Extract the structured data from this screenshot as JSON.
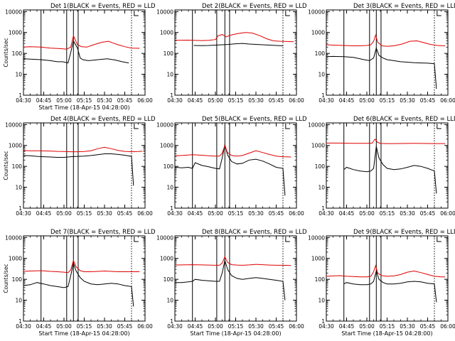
{
  "chart_data": [
    {
      "type": "line",
      "title": "Det 1(BLACK = Events, RED = LLD",
      "xlabel": "Start Time (18-Apr-15 04:28:00)",
      "ylabel": "Counts/sec",
      "x_ticks": [
        "04:30",
        "04:45",
        "05:00",
        "05:15",
        "05:30",
        "05:45",
        "06:00"
      ],
      "y_ticks": [
        "1",
        "10",
        "100",
        "1000",
        "10000"
      ],
      "xlim": [
        0,
        90
      ],
      "ylim": [
        1,
        12000
      ],
      "y_scale": "log",
      "solid_markers": [
        13,
        32,
        37,
        40.5
      ],
      "dotted_markers": [
        80
      ],
      "series": [
        {
          "color": "#000000",
          "x": [
            0,
            13,
            20,
            25,
            29,
            33,
            35,
            37,
            40,
            42,
            44,
            48,
            55,
            62,
            68,
            73,
            78
          ],
          "y": [
            55,
            50,
            45,
            40,
            40,
            35,
            110,
            400,
            180,
            60,
            50,
            45,
            50,
            55,
            48,
            40,
            35
          ]
        },
        {
          "color": "#e00000",
          "x": [
            0,
            5,
            13,
            20,
            27,
            32,
            35,
            37,
            40,
            43,
            47,
            52,
            58,
            63,
            66,
            70,
            75,
            80,
            86
          ],
          "y": [
            200,
            210,
            200,
            180,
            170,
            160,
            200,
            700,
            260,
            210,
            200,
            260,
            340,
            380,
            320,
            260,
            210,
            180,
            175
          ]
        }
      ]
    },
    {
      "type": "line",
      "title": "Det 2(BLACK = Events, RED = LLD",
      "xlabel": "",
      "ylabel": "",
      "x_ticks": [
        "04:30",
        "04:45",
        "05:00",
        "05:15",
        "05:30",
        "05:45",
        "06:00"
      ],
      "y_ticks": [
        "1",
        "10",
        "100",
        "1000",
        "10000"
      ],
      "xlim": [
        0,
        90
      ],
      "ylim": [
        1,
        12000
      ],
      "y_scale": "log",
      "solid_markers": [
        13,
        31,
        37,
        40.5
      ],
      "dotted_markers": [
        80
      ],
      "series": [
        {
          "color": "#000000",
          "x": [
            14,
            20,
            25,
            30,
            35,
            40,
            45,
            50,
            55,
            60,
            65,
            70,
            75,
            80
          ],
          "y": [
            240,
            235,
            240,
            250,
            260,
            270,
            290,
            300,
            280,
            270,
            260,
            250,
            240,
            230
          ]
        },
        {
          "color": "#e00000",
          "x": [
            0,
            10,
            14,
            20,
            25,
            30,
            32,
            35,
            38,
            40,
            43,
            47,
            52,
            57,
            63,
            68,
            73,
            78,
            83,
            88
          ],
          "y": [
            420,
            430,
            420,
            410,
            420,
            460,
            700,
            800,
            620,
            700,
            800,
            900,
            1000,
            950,
            700,
            500,
            400,
            380,
            370,
            360
          ]
        }
      ]
    },
    {
      "type": "line",
      "title": "Det 3(BLACK = Events, RED = LLD",
      "xlabel": "",
      "ylabel": "",
      "x_ticks": [
        "04:30",
        "04:45",
        "05:00",
        "05:15",
        "05:30",
        "05:45",
        "06:00"
      ],
      "y_ticks": [
        "1",
        "10",
        "100",
        "1000",
        "10000"
      ],
      "xlim": [
        0,
        90
      ],
      "ylim": [
        1,
        12000
      ],
      "y_scale": "log",
      "solid_markers": [
        13,
        32,
        37,
        40.5
      ],
      "dotted_markers": [
        80
      ],
      "series": [
        {
          "color": "#000000",
          "x": [
            0,
            5,
            13,
            20,
            25,
            28,
            32,
            35,
            37,
            39,
            42,
            45,
            50,
            55,
            60,
            65,
            70,
            75,
            80,
            81.5
          ],
          "y": [
            70,
            72,
            70,
            65,
            55,
            50,
            45,
            60,
            180,
            80,
            60,
            50,
            45,
            40,
            38,
            36,
            35,
            34,
            32,
            2
          ]
        },
        {
          "color": "#e00000",
          "x": [
            0,
            5,
            13,
            20,
            25,
            30,
            33,
            35,
            36.5,
            38,
            41,
            45,
            50,
            56,
            62,
            67,
            72,
            77,
            82,
            88
          ],
          "y": [
            260,
            250,
            240,
            230,
            230,
            240,
            260,
            380,
            750,
            350,
            230,
            220,
            230,
            280,
            380,
            400,
            330,
            270,
            240,
            230
          ]
        }
      ]
    },
    {
      "type": "line",
      "title": "Det 4(BLACK = Events, RED = LLD",
      "xlabel": "",
      "ylabel": "Counts/sec",
      "x_ticks": [
        "04:30",
        "04:45",
        "05:00",
        "05:15",
        "05:30",
        "05:45",
        "06:00"
      ],
      "y_ticks": [
        "1",
        "10",
        "100",
        "1000",
        "10000"
      ],
      "xlim": [
        0,
        90
      ],
      "ylim": [
        1,
        12000
      ],
      "y_scale": "log",
      "solid_markers": [
        13,
        32,
        37,
        40.5
      ],
      "dotted_markers": [
        80
      ],
      "series": [
        {
          "color": "#000000",
          "x": [
            0,
            5,
            10,
            15,
            20,
            25,
            30,
            35,
            40,
            45,
            50,
            55,
            60,
            65,
            70,
            75,
            80,
            81.5
          ],
          "y": [
            330,
            320,
            300,
            290,
            280,
            270,
            270,
            290,
            300,
            310,
            330,
            360,
            400,
            400,
            370,
            340,
            300,
            12
          ]
        },
        {
          "color": "#e00000",
          "x": [
            0,
            5,
            10,
            15,
            20,
            25,
            30,
            35,
            40,
            45,
            50,
            55,
            60,
            65,
            70,
            75,
            80,
            85,
            88
          ],
          "y": [
            570,
            560,
            560,
            550,
            540,
            520,
            510,
            500,
            500,
            510,
            560,
            700,
            820,
            700,
            580,
            520,
            500,
            510,
            530
          ]
        }
      ]
    },
    {
      "type": "line",
      "title": "Det 5(BLACK = Events, RED = LLD",
      "xlabel": "",
      "ylabel": "",
      "x_ticks": [
        "04:30",
        "04:45",
        "05:00",
        "05:15",
        "05:30",
        "05:45",
        "06:00"
      ],
      "y_ticks": [
        "1",
        "10",
        "100",
        "1000",
        "10000"
      ],
      "xlim": [
        0,
        90
      ],
      "ylim": [
        1,
        12000
      ],
      "y_scale": "log",
      "solid_markers": [
        13,
        31,
        37,
        40.5
      ],
      "dotted_markers": [
        80
      ],
      "series": [
        {
          "color": "#000000",
          "x": [
            0,
            5,
            10,
            13,
            15,
            20,
            25,
            30,
            33,
            35,
            37,
            39,
            42,
            46,
            50,
            55,
            60,
            65,
            70,
            75,
            80,
            81.5
          ],
          "y": [
            90,
            85,
            90,
            80,
            150,
            110,
            95,
            80,
            75,
            250,
            1100,
            350,
            170,
            130,
            140,
            200,
            220,
            180,
            130,
            90,
            80,
            4
          ]
        },
        {
          "color": "#e00000",
          "x": [
            0,
            5,
            13,
            20,
            25,
            30,
            33,
            35,
            37,
            39,
            42,
            46,
            50,
            55,
            60,
            65,
            70,
            75,
            80,
            86
          ],
          "y": [
            320,
            330,
            360,
            340,
            320,
            310,
            310,
            420,
            1000,
            450,
            330,
            310,
            330,
            430,
            560,
            460,
            370,
            310,
            290,
            280
          ]
        }
      ]
    },
    {
      "type": "line",
      "title": "Det 6(BLACK = Events, RED = LLD",
      "xlabel": "",
      "ylabel": "",
      "x_ticks": [
        "04:30",
        "04:45",
        "05:00",
        "05:15",
        "05:30",
        "05:45",
        "06:00"
      ],
      "y_ticks": [
        "1",
        "10",
        "100",
        "1000",
        "10000"
      ],
      "xlim": [
        0,
        90
      ],
      "ylim": [
        1,
        12000
      ],
      "y_scale": "log",
      "solid_markers": [
        13,
        32,
        37,
        40.5
      ],
      "dotted_markers": [
        80
      ],
      "series": [
        {
          "color": "#000000",
          "x": [
            13,
            15,
            20,
            25,
            30,
            33,
            35,
            37,
            39,
            42,
            45,
            50,
            55,
            60,
            65,
            70,
            75,
            80,
            81.5
          ],
          "y": [
            70,
            90,
            70,
            60,
            55,
            60,
            80,
            900,
            250,
            120,
            80,
            70,
            75,
            90,
            110,
            100,
            80,
            60,
            5
          ]
        },
        {
          "color": "#e00000",
          "x": [
            0,
            5,
            10,
            15,
            20,
            25,
            30,
            34,
            36,
            38,
            40,
            45,
            50,
            55,
            60,
            65,
            70,
            75,
            80,
            85,
            88
          ],
          "y": [
            1300,
            1300,
            1300,
            1280,
            1270,
            1260,
            1260,
            1300,
            2000,
            1400,
            1250,
            1230,
            1230,
            1240,
            1250,
            1260,
            1250,
            1240,
            1230,
            1230,
            1230
          ]
        }
      ]
    },
    {
      "type": "line",
      "title": "Det 7(BLACK = Events, RED = LLD",
      "xlabel": "Start Time (18-Apr-15 04:28:00)",
      "ylabel": "Counts/sec",
      "x_ticks": [
        "04:30",
        "04:45",
        "05:00",
        "05:15",
        "05:30",
        "05:45",
        "06:00"
      ],
      "y_ticks": [
        "1",
        "10",
        "100",
        "1000",
        "10000"
      ],
      "xlim": [
        0,
        90
      ],
      "ylim": [
        1,
        12000
      ],
      "y_scale": "log",
      "solid_markers": [
        13,
        32,
        37,
        40.5
      ],
      "dotted_markers": [
        80
      ],
      "series": [
        {
          "color": "#000000",
          "x": [
            0,
            5,
            10,
            15,
            20,
            25,
            30,
            33,
            35,
            37,
            39,
            42,
            45,
            50,
            55,
            60,
            65,
            70,
            75,
            80,
            81.5
          ],
          "y": [
            50,
            55,
            70,
            60,
            50,
            45,
            40,
            45,
            150,
            600,
            250,
            120,
            80,
            60,
            55,
            60,
            65,
            60,
            50,
            45,
            5
          ]
        },
        {
          "color": "#e00000",
          "x": [
            0,
            5,
            13,
            20,
            25,
            30,
            33,
            35,
            37,
            39,
            42,
            45,
            50,
            55,
            60,
            65,
            70,
            75,
            80,
            86
          ],
          "y": [
            240,
            250,
            260,
            240,
            230,
            220,
            210,
            280,
            800,
            400,
            260,
            230,
            230,
            240,
            250,
            240,
            230,
            230,
            230,
            230
          ]
        }
      ]
    },
    {
      "type": "line",
      "title": "Det 8(BLACK = Events, RED = LLD",
      "xlabel": "Start Time (18-Apr-15 04:28:00)",
      "ylabel": "",
      "x_ticks": [
        "04:30",
        "04:45",
        "05:00",
        "05:15",
        "05:30",
        "05:45",
        "06:00"
      ],
      "y_ticks": [
        "1",
        "10",
        "100",
        "1000",
        "10000"
      ],
      "xlim": [
        0,
        90
      ],
      "ylim": [
        1,
        12000
      ],
      "y_scale": "log",
      "solid_markers": [
        13,
        31,
        37,
        40.5
      ],
      "dotted_markers": [
        80
      ],
      "series": [
        {
          "color": "#000000",
          "x": [
            0,
            5,
            10,
            13,
            15,
            20,
            25,
            30,
            33,
            35,
            37,
            39,
            42,
            46,
            50,
            55,
            60,
            65,
            70,
            75,
            80,
            81.5
          ],
          "y": [
            70,
            70,
            75,
            80,
            100,
            90,
            85,
            80,
            80,
            200,
            800,
            300,
            150,
            110,
            100,
            110,
            120,
            110,
            100,
            90,
            80,
            10
          ]
        },
        {
          "color": "#e00000",
          "x": [
            0,
            5,
            13,
            20,
            25,
            30,
            33,
            35,
            37,
            39,
            42,
            46,
            50,
            55,
            60,
            65,
            70,
            75,
            80,
            86
          ],
          "y": [
            480,
            490,
            500,
            490,
            480,
            470,
            470,
            600,
            1200,
            650,
            500,
            480,
            470,
            490,
            520,
            500,
            480,
            470,
            470,
            460
          ]
        }
      ]
    },
    {
      "type": "line",
      "title": "Det 9(BLACK = Events, RED = LLD",
      "xlabel": "Start Time (18-Apr-15 04:28:00)",
      "ylabel": "",
      "x_ticks": [
        "04:30",
        "04:45",
        "05:00",
        "05:15",
        "05:30",
        "05:45",
        "06:00"
      ],
      "y_ticks": [
        "1",
        "10",
        "100",
        "1000",
        "10000"
      ],
      "xlim": [
        0,
        90
      ],
      "ylim": [
        1,
        12000
      ],
      "y_scale": "log",
      "solid_markers": [
        13,
        32,
        37,
        40.5
      ],
      "dotted_markers": [
        80
      ],
      "series": [
        {
          "color": "#000000",
          "x": [
            13,
            15,
            20,
            25,
            30,
            33,
            35,
            37,
            39,
            42,
            45,
            50,
            55,
            60,
            65,
            70,
            75,
            80,
            81.5
          ],
          "y": [
            60,
            70,
            60,
            55,
            55,
            60,
            80,
            250,
            100,
            70,
            60,
            60,
            65,
            75,
            80,
            75,
            65,
            60,
            8
          ]
        },
        {
          "color": "#e00000",
          "x": [
            0,
            5,
            10,
            15,
            20,
            25,
            30,
            33,
            35,
            36.5,
            38,
            41,
            45,
            50,
            55,
            60,
            65,
            70,
            75,
            80,
            85,
            88
          ],
          "y": [
            140,
            145,
            150,
            140,
            135,
            130,
            130,
            140,
            230,
            450,
            200,
            150,
            140,
            145,
            170,
            220,
            250,
            210,
            170,
            140,
            130,
            130
          ]
        }
      ]
    }
  ]
}
